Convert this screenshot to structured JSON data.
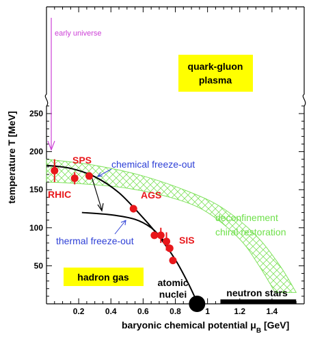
{
  "chart_data": {
    "type": "scatter",
    "title": "",
    "xlabel": "baryonic chemical potential μ",
    "xlabel_sub": "B",
    "xlabel_unit": " [GeV]",
    "ylabel": "temperature T [MeV]",
    "xlim": [
      0.0,
      1.6
    ],
    "ylim": [
      0,
      270
    ],
    "y_break_above": 270,
    "grid": false,
    "legend": "none",
    "x_ticks": [
      0.2,
      0.4,
      0.6,
      0.8,
      1.0,
      1.2,
      1.4
    ],
    "x_tick_labels": [
      "0.2",
      "0.4",
      "0.6",
      "0.8",
      "1",
      "1.2",
      "1.4"
    ],
    "y_ticks": [
      50,
      100,
      150,
      200,
      250
    ],
    "y_tick_labels": [
      "50",
      "100",
      "150",
      "200",
      "250"
    ],
    "colors": {
      "points": "#e8171b",
      "band": "#7fe25c",
      "labels_red": "#e8171b",
      "labels_blue": "#2d3fd6",
      "labels_green": "#6ee04a",
      "early_universe": "#cc3fd6",
      "box_fill": "#ffff00",
      "curve": "#000000"
    },
    "series": [
      {
        "points": [
          {
            "x": 0.05,
            "y": 175,
            "yerr": 15
          },
          {
            "x": 0.175,
            "y": 165,
            "yerr": 8
          },
          {
            "x": 0.265,
            "y": 168,
            "yerr": 4
          },
          {
            "x": 0.54,
            "y": 125,
            "yerr": 5
          },
          {
            "x": 0.67,
            "y": 90,
            "yerr": 4
          },
          {
            "x": 0.71,
            "y": 90,
            "yerr": 10
          },
          {
            "x": 0.745,
            "y": 82,
            "yerr": 12
          },
          {
            "x": 0.765,
            "y": 73,
            "yerr": 5
          },
          {
            "x": 0.785,
            "y": 57,
            "yerr": 3
          }
        ]
      }
    ],
    "chemical_freeze_out_curve": [
      {
        "x": 0.0,
        "y": 182
      },
      {
        "x": 0.15,
        "y": 178
      },
      {
        "x": 0.3,
        "y": 167
      },
      {
        "x": 0.45,
        "y": 146
      },
      {
        "x": 0.6,
        "y": 113
      },
      {
        "x": 0.7,
        "y": 88
      },
      {
        "x": 0.8,
        "y": 58
      },
      {
        "x": 0.88,
        "y": 27
      },
      {
        "x": 0.94,
        "y": 0
      }
    ],
    "thermal_freeze_out_curve": [
      {
        "x": 0.22,
        "y": 120
      },
      {
        "x": 0.4,
        "y": 117
      },
      {
        "x": 0.55,
        "y": 111
      },
      {
        "x": 0.65,
        "y": 100
      },
      {
        "x": 0.72,
        "y": 85
      },
      {
        "x": 0.78,
        "y": 70
      }
    ],
    "phase_band_upper": [
      {
        "x": 0.0,
        "y": 190
      },
      {
        "x": 0.3,
        "y": 182
      },
      {
        "x": 0.6,
        "y": 168
      },
      {
        "x": 0.9,
        "y": 146
      },
      {
        "x": 1.1,
        "y": 125
      },
      {
        "x": 1.3,
        "y": 90
      },
      {
        "x": 1.45,
        "y": 50
      },
      {
        "x": 1.55,
        "y": 15
      }
    ],
    "phase_band_lower": [
      {
        "x": 1.42,
        "y": 15
      },
      {
        "x": 1.32,
        "y": 50
      },
      {
        "x": 1.2,
        "y": 85
      },
      {
        "x": 1.0,
        "y": 120
      },
      {
        "x": 0.8,
        "y": 138
      },
      {
        "x": 0.5,
        "y": 152
      },
      {
        "x": 0.2,
        "y": 158
      },
      {
        "x": 0.0,
        "y": 160
      }
    ],
    "neutron_star_bar": {
      "x0": 1.08,
      "x1": 1.55,
      "y": 0
    },
    "atomic_nuclei_point": {
      "x": 0.935,
      "y": 0
    },
    "annotations": {
      "early_universe": "early universe",
      "quark_gluon": "quark-gluon",
      "plasma": "plasma",
      "hadron_gas": "hadron gas",
      "rhic": "RHIC",
      "sps": "SPS",
      "ags": "AGS",
      "sis": "SIS",
      "chemical": "chemical freeze-out",
      "thermal": "thermal freeze-out",
      "deconfinement": "deconfinement",
      "chiral": "chiral restoration",
      "atomic": "atomic",
      "nuclei": "nuclei",
      "neutron_stars": "neutron stars"
    }
  }
}
